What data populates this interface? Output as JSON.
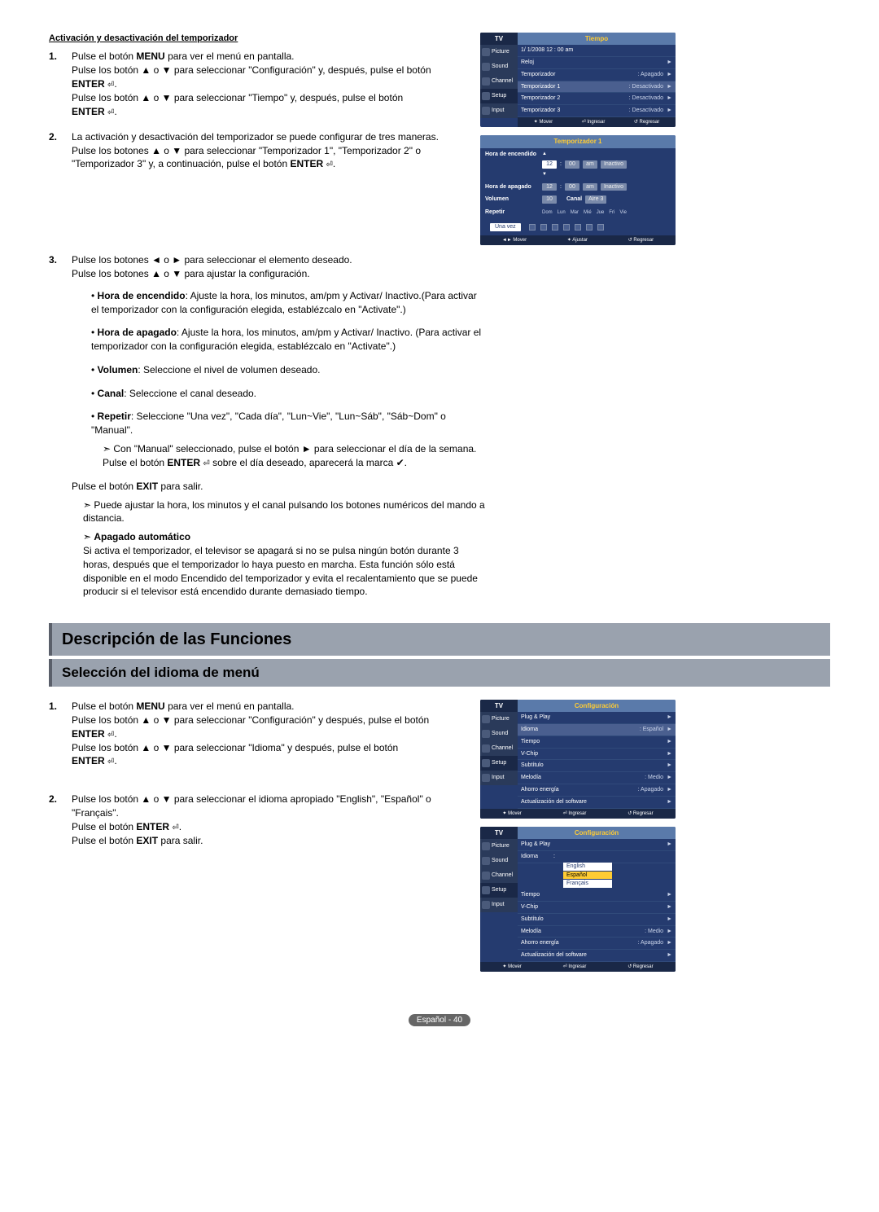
{
  "section1": {
    "title": "Activación y desactivación del temporizador",
    "step1": {
      "num": "1.",
      "l1a": "Pulse el botón ",
      "l1b": "MENU",
      "l1c": " para ver el menú en pantalla.",
      "l2": "Pulse los botón ▲ o ▼ para seleccionar \"Configuración\" y, después, pulse el botón",
      "enter": "ENTER",
      "l3": "Pulse los botón ▲ o ▼ para seleccionar \"Tiempo\" y, después, pulse el botón"
    },
    "step2": {
      "num": "2.",
      "l1": "La activación y desactivación del temporizador se puede configurar de tres maneras. Pulse los botones ▲ o ▼ para seleccionar \"Temporizador 1\", \"Temporizador 2\" o \"Temporizador 3\" y, a continuación, pulse el botón ",
      "enter": "ENTER"
    },
    "step3": {
      "num": "3.",
      "l1": "Pulse los botones ◄ o ► para seleccionar el elemento deseado.",
      "l2": "Pulse los botones ▲ o ▼ para ajustar la configuración.",
      "bullets": {
        "b1_label": "Hora de encendido",
        "b1_text": ": Ajuste la hora, los minutos, am/pm y Activar/ Inactivo.(Para activar el temporizador con la configuración elegida, establézcalo en \"Activate\".)",
        "b2_label": "Hora de apagado",
        "b2_text": ": Ajuste la hora, los minutos, am/pm y Activar/ Inactivo. (Para activar el temporizador con la configuración elegida, establézcalo en \"Activate\".)",
        "b3_label": "Volumen",
        "b3_text": ": Seleccione el nivel de volumen deseado.",
        "b4_label": "Canal",
        "b4_text": ": Seleccione el canal deseado.",
        "b5_label": "Repetir",
        "b5_text": ": Seleccione \"Una vez\", \"Cada día\", \"Lun~Vie\", \"Lun~Sáb\", \"Sáb~Dom\" o \"Manual\".",
        "b5_arrow": "Con \"Manual\" seleccionado, pulse el botón ► para seleccionar el día de la semana. Pulse el botón ",
        "b5_arrow_enter": "ENTER",
        "b5_arrow_end": " sobre el día deseado, aparecerá la marca ✔."
      },
      "exit_a": "Pulse el botón ",
      "exit_b": "EXIT",
      "exit_c": " para salir.",
      "arrow1": "Puede ajustar la hora, los minutos y el canal pulsando los botones numéricos del mando a distancia.",
      "apagado_label": "Apagado automático",
      "apagado_text": "Si activa el temporizador, el televisor se apagará si no se pulsa ningún botón durante 3 horas, después que el temporizador lo haya puesto en marcha. Esta función sólo está disponible en el modo Encendido del temporizador y evita el recalentamiento que se puede producir si el televisor está encendido durante demasiado tiempo."
    }
  },
  "osd1": {
    "sidebar_title": "TV",
    "main_title": "Tiempo",
    "date": "1/  1/2008  12 : 00 am",
    "side": [
      "Picture",
      "Sound",
      "Channel",
      "Setup",
      "Input"
    ],
    "rows": [
      {
        "label": "Reloj",
        "value": "",
        "sel": false
      },
      {
        "label": "Temporizador",
        "value": ": Apagado",
        "sel": false
      },
      {
        "label": "Temporizador 1",
        "value": ": Desactivado",
        "sel": true
      },
      {
        "label": "Temporizador 2",
        "value": ": Desactivado",
        "sel": false
      },
      {
        "label": "Temporizador 3",
        "value": ": Desactivado",
        "sel": false
      }
    ],
    "footer": [
      "✦ Mover",
      "⏎ Ingresar",
      "↺ Regresar"
    ]
  },
  "osd_timer": {
    "title": "Temporizador 1",
    "row1_label": "Hora de encendido",
    "row2_label": "Hora de apagado",
    "hour": "12",
    "min": "00",
    "ampm": "am",
    "state": "Inactivo",
    "vol_label": "Volumen",
    "vol_val": "10",
    "canal_label": "Canal",
    "canal_val": "Aire   3",
    "repetir_label": "Repetir",
    "days": [
      "Dom",
      "Lun",
      "Mar",
      "Mié",
      "Jue",
      "Fri",
      "Vie"
    ],
    "una_vez": "Una vez",
    "footer": [
      "◄► Mover",
      "✦ Ajustar",
      "↺ Regresar"
    ]
  },
  "headers": {
    "h1": "Descripción de las Funciones",
    "h2": "Selección del idioma de menú"
  },
  "section2": {
    "step1": {
      "num": "1.",
      "l1a": "Pulse el botón ",
      "l1b": "MENU",
      "l1c": " para ver el menú en pantalla.",
      "l2": "Pulse los botón ▲ o ▼ para seleccionar \"Configuración\" y después, pulse el botón",
      "enter": "ENTER",
      "l3": "Pulse los botón ▲ o ▼ para seleccionar \"Idioma\" y después, pulse el botón"
    },
    "step2": {
      "num": "2.",
      "l1": "Pulse los botón ▲ o ▼ para seleccionar el idioma apropiado \"English\", \"Español\" o \"Français\".",
      "l2a": "Pulse el botón ",
      "l2b": "ENTER",
      "l3a": "Pulse el botón ",
      "l3b": "EXIT",
      "l3c": " para salir."
    }
  },
  "osd_config1": {
    "sidebar_title": "TV",
    "main_title": "Configuración",
    "side": [
      "Picture",
      "Sound",
      "Channel",
      "Setup",
      "Input"
    ],
    "rows": [
      {
        "label": "Plug & Play",
        "value": "",
        "sel": false
      },
      {
        "label": "Idioma",
        "value": ": Español",
        "sel": true
      },
      {
        "label": "Tiempo",
        "value": "",
        "sel": false
      },
      {
        "label": "V-Chip",
        "value": "",
        "sel": false
      },
      {
        "label": "Subtítulo",
        "value": "",
        "sel": false
      },
      {
        "label": "Melodía",
        "value": ": Medio",
        "sel": false
      },
      {
        "label": "Ahorro energía",
        "value": ": Apagado",
        "sel": false
      },
      {
        "label": "Actualización del software",
        "value": "",
        "sel": false
      }
    ],
    "footer": [
      "✦ Mover",
      "⏎ Ingresar",
      "↺ Regresar"
    ]
  },
  "osd_config2": {
    "sidebar_title": "TV",
    "main_title": "Configuración",
    "side": [
      "Picture",
      "Sound",
      "Channel",
      "Setup",
      "Input"
    ],
    "rows_top": [
      {
        "label": "Plug & Play"
      },
      {
        "label": "Idioma"
      }
    ],
    "dropdown": [
      "English",
      "Español",
      "Français"
    ],
    "dropdown_sel": 1,
    "rows_bottom": [
      {
        "label": "Tiempo"
      },
      {
        "label": "V-Chip"
      },
      {
        "label": "Subtítulo"
      },
      {
        "label": "Melodía",
        "value": ": Medio"
      },
      {
        "label": "Ahorro energía",
        "value": ": Apagado"
      },
      {
        "label": "Actualización del software"
      }
    ],
    "footer": [
      "✦ Mover",
      "⏎ Ingresar",
      "↺ Regresar"
    ]
  },
  "page_footer": "Español - 40"
}
